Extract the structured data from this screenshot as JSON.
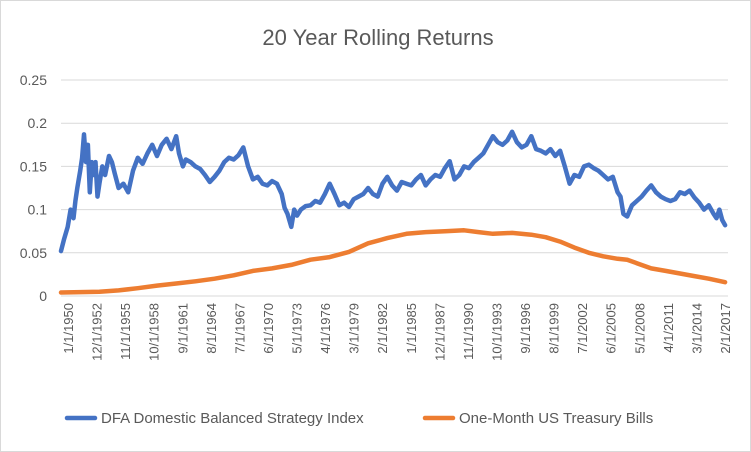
{
  "chart_data": {
    "type": "line",
    "title": "20 Year Rolling Returns",
    "xlabel": "",
    "ylabel": "",
    "ylim": [
      0,
      0.25
    ],
    "y_ticks": [
      "0",
      "0.05",
      "0.1",
      "0.15",
      "0.2",
      "0.25"
    ],
    "x_ticks": [
      "1/1/1950",
      "12/1/1952",
      "11/1/1955",
      "10/1/1958",
      "9/1/1961",
      "8/1/1964",
      "7/1/1967",
      "6/1/1970",
      "5/1/1973",
      "4/1/1976",
      "3/1/1979",
      "2/1/1982",
      "1/1/1985",
      "12/1/1987",
      "11/1/1990",
      "10/1/1993",
      "9/1/1996",
      "8/1/1999",
      "7/1/2002",
      "6/1/2005",
      "5/1/2008",
      "4/1/2011",
      "3/1/2014",
      "2/1/2017"
    ],
    "xlim": [
      1950.0,
      2019.5
    ],
    "grid": true,
    "legend_position": "bottom",
    "series": [
      {
        "name": "DFA Domestic Balanced Strategy Index",
        "color": "#4472C4",
        "x": [
          1950.0,
          1950.3,
          1950.7,
          1951.0,
          1951.3,
          1951.5,
          1951.7,
          1952.0,
          1952.2,
          1952.4,
          1952.6,
          1952.8,
          1953.0,
          1953.2,
          1953.4,
          1953.6,
          1953.8,
          1954.0,
          1954.3,
          1954.6,
          1955.0,
          1955.3,
          1955.6,
          1956.0,
          1956.5,
          1957.0,
          1957.5,
          1958.0,
          1958.5,
          1959.0,
          1959.5,
          1960.0,
          1960.5,
          1961.0,
          1961.5,
          1962.0,
          1962.3,
          1962.7,
          1963.0,
          1963.5,
          1964.0,
          1964.5,
          1965.0,
          1965.5,
          1966.0,
          1966.5,
          1967.0,
          1967.5,
          1968.0,
          1968.5,
          1969.0,
          1969.5,
          1970.0,
          1970.5,
          1971.0,
          1971.5,
          1972.0,
          1972.5,
          1973.0,
          1973.3,
          1973.6,
          1974.0,
          1974.3,
          1974.6,
          1975.0,
          1975.5,
          1976.0,
          1976.5,
          1977.0,
          1977.5,
          1978.0,
          1978.5,
          1979.0,
          1979.5,
          1980.0,
          1980.5,
          1981.0,
          1981.5,
          1982.0,
          1982.5,
          1983.0,
          1983.5,
          1984.0,
          1984.5,
          1985.0,
          1985.5,
          1986.0,
          1986.5,
          1987.0,
          1987.5,
          1988.0,
          1988.5,
          1989.0,
          1989.5,
          1990.0,
          1990.5,
          1991.0,
          1991.5,
          1992.0,
          1992.5,
          1993.0,
          1993.5,
          1994.0,
          1994.5,
          1995.0,
          1995.5,
          1996.0,
          1996.5,
          1997.0,
          1997.5,
          1998.0,
          1998.5,
          1999.0,
          1999.5,
          2000.0,
          2000.5,
          2001.0,
          2001.5,
          2002.0,
          2002.5,
          2003.0,
          2003.5,
          2004.0,
          2004.5,
          2005.0,
          2005.5,
          2006.0,
          2006.5,
          2007.0,
          2007.5,
          2008.0,
          2008.3,
          2008.6,
          2009.0,
          2009.5,
          2010.0,
          2010.5,
          2011.0,
          2011.5,
          2012.0,
          2012.5,
          2013.0,
          2013.5,
          2014.0,
          2014.5,
          2015.0,
          2015.5,
          2016.0,
          2016.5,
          2017.0,
          2017.5,
          2018.0,
          2018.3,
          2018.6,
          2018.9,
          2019.2
        ],
        "values": [
          0.052,
          0.065,
          0.08,
          0.1,
          0.09,
          0.11,
          0.125,
          0.145,
          0.16,
          0.187,
          0.155,
          0.175,
          0.12,
          0.155,
          0.14,
          0.155,
          0.115,
          0.13,
          0.15,
          0.14,
          0.162,
          0.155,
          0.142,
          0.125,
          0.13,
          0.12,
          0.145,
          0.16,
          0.153,
          0.165,
          0.175,
          0.162,
          0.175,
          0.182,
          0.17,
          0.185,
          0.165,
          0.15,
          0.158,
          0.155,
          0.15,
          0.147,
          0.14,
          0.132,
          0.138,
          0.145,
          0.155,
          0.16,
          0.158,
          0.163,
          0.172,
          0.15,
          0.135,
          0.138,
          0.13,
          0.128,
          0.133,
          0.13,
          0.118,
          0.102,
          0.095,
          0.08,
          0.1,
          0.093,
          0.1,
          0.104,
          0.105,
          0.11,
          0.108,
          0.118,
          0.13,
          0.118,
          0.105,
          0.108,
          0.103,
          0.112,
          0.115,
          0.118,
          0.125,
          0.118,
          0.115,
          0.13,
          0.138,
          0.128,
          0.122,
          0.132,
          0.13,
          0.128,
          0.135,
          0.14,
          0.128,
          0.135,
          0.14,
          0.138,
          0.148,
          0.156,
          0.135,
          0.14,
          0.15,
          0.148,
          0.155,
          0.16,
          0.165,
          0.175,
          0.185,
          0.178,
          0.175,
          0.18,
          0.19,
          0.178,
          0.172,
          0.175,
          0.185,
          0.17,
          0.168,
          0.165,
          0.17,
          0.162,
          0.168,
          0.15,
          0.13,
          0.14,
          0.138,
          0.15,
          0.152,
          0.148,
          0.145,
          0.14,
          0.135,
          0.138,
          0.12,
          0.115,
          0.095,
          0.092,
          0.105,
          0.11,
          0.115,
          0.122,
          0.128,
          0.12,
          0.115,
          0.112,
          0.11,
          0.112,
          0.12,
          0.118,
          0.122,
          0.114,
          0.108,
          0.1,
          0.105,
          0.095,
          0.09,
          0.1,
          0.088,
          0.082
        ]
      },
      {
        "name": "One-Month US Treasury Bills",
        "color": "#ED7D31",
        "x": [
          1950.0,
          1952.0,
          1954.0,
          1956.0,
          1958.0,
          1960.0,
          1962.0,
          1964.0,
          1966.0,
          1968.0,
          1970.0,
          1972.0,
          1974.0,
          1976.0,
          1978.0,
          1980.0,
          1982.0,
          1984.0,
          1986.0,
          1988.0,
          1990.0,
          1992.0,
          1993.5,
          1995.0,
          1997.0,
          1999.0,
          2000.5,
          2002.0,
          2003.5,
          2005.0,
          2006.5,
          2008.0,
          2009.0,
          2010.0,
          2011.5,
          2013.0,
          2014.5,
          2016.0,
          2017.5,
          2019.2
        ],
        "values": [
          0.004,
          0.0045,
          0.005,
          0.0065,
          0.009,
          0.012,
          0.0145,
          0.017,
          0.02,
          0.024,
          0.029,
          0.032,
          0.036,
          0.042,
          0.045,
          0.051,
          0.061,
          0.067,
          0.072,
          0.074,
          0.075,
          0.076,
          0.074,
          0.072,
          0.073,
          0.071,
          0.068,
          0.063,
          0.056,
          0.05,
          0.046,
          0.043,
          0.042,
          0.038,
          0.032,
          0.029,
          0.026,
          0.023,
          0.02,
          0.016
        ]
      }
    ]
  }
}
